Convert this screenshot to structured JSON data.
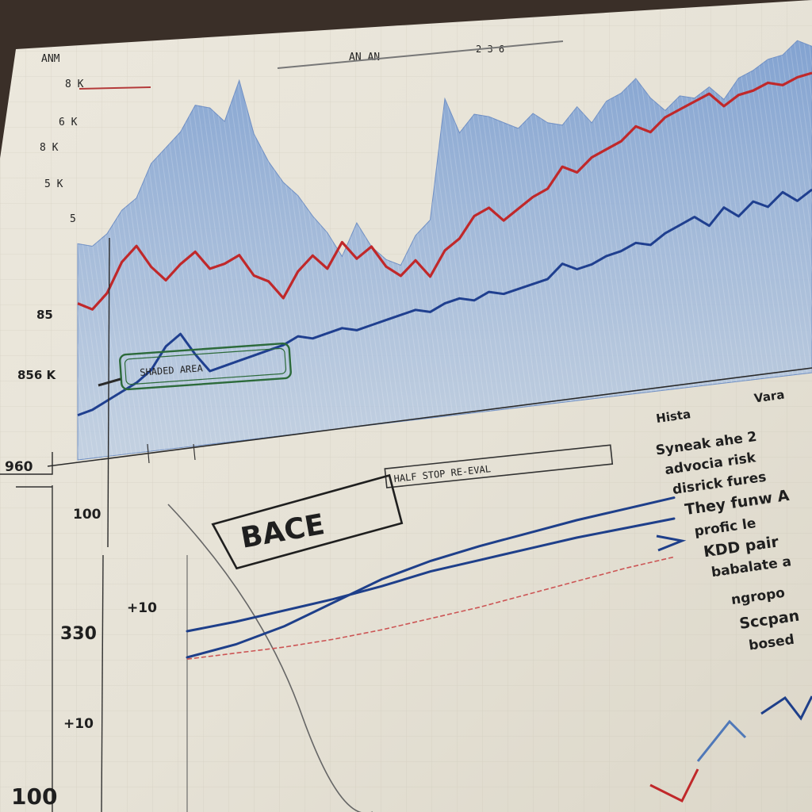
{
  "chart_data": [
    {
      "type": "area",
      "title": "",
      "xlabel": "",
      "ylabel": "",
      "y_tick_labels": [
        "85",
        "856 K",
        "960"
      ],
      "x": [
        0,
        2,
        4,
        6,
        8,
        10,
        12,
        14,
        16,
        18,
        20,
        22,
        24,
        26,
        28,
        30,
        32,
        34,
        36,
        38,
        40,
        42,
        44,
        46,
        48,
        50,
        52,
        54,
        56,
        58,
        60,
        62,
        64,
        66,
        68,
        70,
        72,
        74,
        76,
        78,
        80,
        82,
        84,
        86,
        88,
        90,
        92,
        94,
        96,
        98,
        100
      ],
      "ylim": [
        0,
        100
      ],
      "series": [
        {
          "style": "filled-area",
          "color": "#9fb7d9",
          "values": [
            58,
            57,
            60,
            66,
            69,
            78,
            82,
            86,
            93,
            92,
            88,
            99,
            84,
            76,
            70,
            66,
            60,
            55,
            48,
            57,
            50,
            46,
            44,
            52,
            56,
            90,
            80,
            85,
            84,
            82,
            80,
            84,
            81,
            80,
            85,
            80,
            86,
            88,
            92,
            86,
            82,
            86,
            85,
            88,
            84,
            90,
            92,
            95,
            96,
            100,
            98
          ]
        },
        {
          "style": "line",
          "color": "#c0282a",
          "values": [
            42,
            40,
            44,
            52,
            56,
            50,
            46,
            50,
            53,
            48,
            49,
            51,
            45,
            43,
            38,
            45,
            49,
            45,
            52,
            47,
            50,
            44,
            41,
            45,
            40,
            47,
            50,
            56,
            58,
            54,
            57,
            60,
            62,
            68,
            66,
            70,
            72,
            74,
            78,
            76,
            80,
            82,
            84,
            86,
            82,
            85,
            86,
            88,
            87,
            89,
            90
          ]
        },
        {
          "style": "line",
          "color": "#1f3f8f",
          "values": [
            12,
            13,
            15,
            17,
            19,
            22,
            28,
            31,
            25,
            20,
            21,
            22,
            23,
            24,
            25,
            27,
            26,
            27,
            28,
            27,
            28,
            29,
            30,
            31,
            30,
            32,
            33,
            32,
            34,
            33,
            34,
            35,
            36,
            40,
            38,
            39,
            41,
            42,
            44,
            43,
            46,
            48,
            50,
            47,
            52,
            49,
            53,
            51,
            55,
            52,
            55
          ]
        }
      ]
    },
    {
      "type": "line",
      "title": "",
      "xlabel": "",
      "ylabel": "",
      "y_tick_labels": [
        "100",
        "+10",
        "330",
        "+10",
        "100"
      ],
      "x": [
        0,
        1,
        2,
        3,
        4,
        5,
        6,
        7,
        8,
        9,
        10
      ],
      "ylim": [
        0,
        100
      ],
      "series": [
        {
          "color": "#1e3f8a",
          "values": [
            20,
            25,
            31,
            37,
            44,
            52,
            58,
            64,
            70,
            75,
            80
          ]
        },
        {
          "color": "#1e3f8a",
          "values": [
            5,
            12,
            22,
            35,
            48,
            58,
            66,
            73,
            80,
            86,
            92
          ]
        },
        {
          "color": "#cc5555",
          "values": [
            4,
            7,
            10,
            14,
            19,
            25,
            31,
            38,
            45,
            52,
            58
          ]
        }
      ]
    }
  ],
  "header": {
    "label_a": "ANM",
    "label_b": "AN AN",
    "label_c": "2 3 6"
  },
  "top_ticks": [
    "8 K",
    "6 K",
    "8 K",
    "5 K",
    "5"
  ],
  "annotations": {
    "box_upper": "SHADED AREA",
    "box_lower": "BACE",
    "banner": "HALF STOP RE-EVAL",
    "col_heads": [
      "Hista",
      "Vara"
    ]
  },
  "notes": [
    "Syneak ahe 2",
    "advocia risk",
    "disrick fures",
    "They funw A",
    "profic le",
    "KDD pair",
    "babalate a",
    "ngropo",
    "Sccpan",
    "bosed"
  ]
}
